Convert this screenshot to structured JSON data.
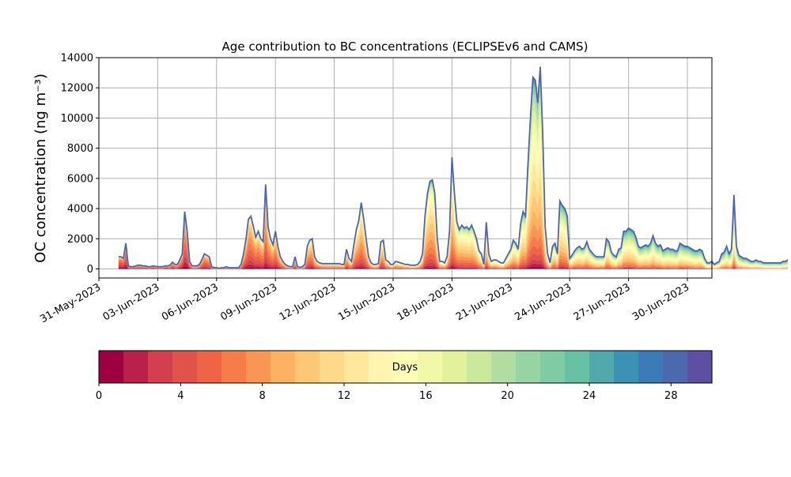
{
  "chart_data": {
    "type": "area",
    "title": "Age contribution to BC concentrations (ECLIPSEv6 and CAMS)",
    "ylabel": "OC concentration (ng m⁻³)",
    "xlabel": "",
    "ylim": [
      -600,
      14000
    ],
    "xlim": [
      "2023-05-31T00:00",
      "2023-07-01T06:00"
    ],
    "grid": true,
    "x_ticks": [
      "31-May-2023",
      "03-Jun-2023",
      "06-Jun-2023",
      "09-Jun-2023",
      "12-Jun-2023",
      "15-Jun-2023",
      "18-Jun-2023",
      "21-Jun-2023",
      "24-Jun-2023",
      "27-Jun-2023",
      "30-Jun-2023"
    ],
    "y_ticks": [
      "0",
      "2000",
      "4000",
      "6000",
      "8000",
      "10000",
      "12000",
      "14000"
    ],
    "total_series_start": "2023-06-01T00:00",
    "total_series_step_hours": 3,
    "total": [
      800,
      800,
      700,
      1700,
      200,
      150,
      150,
      200,
      250,
      250,
      200,
      200,
      150,
      150,
      200,
      180,
      150,
      150,
      150,
      200,
      200,
      250,
      450,
      300,
      300,
      600,
      1000,
      3800,
      2500,
      500,
      200,
      200,
      200,
      300,
      600,
      1000,
      900,
      800,
      150,
      80,
      80,
      50,
      80,
      80,
      150,
      80,
      80,
      80,
      80,
      80,
      300,
      1000,
      2000,
      3300,
      3500,
      2800,
      2100,
      2500,
      2000,
      1800,
      5600,
      2800,
      2000,
      1600,
      2500,
      1500,
      800,
      500,
      300,
      200,
      150,
      150,
      800,
      150,
      100,
      150,
      300,
      1500,
      1900,
      2000,
      800,
      500,
      400,
      350,
      350,
      350,
      350,
      350,
      350,
      350,
      350,
      300,
      300,
      1300,
      700,
      500,
      1600,
      2600,
      3200,
      4400,
      3300,
      2000,
      800,
      400,
      300,
      300,
      350,
      1800,
      1900,
      600,
      500,
      300,
      300,
      500,
      450,
      400,
      350,
      300,
      300,
      250,
      250,
      250,
      300,
      500,
      1000,
      3500,
      5000,
      5800,
      5900,
      5000,
      2000,
      500,
      500,
      400,
      800,
      2500,
      7400,
      5000,
      3100,
      2600,
      2900,
      2700,
      2800,
      2600,
      2900,
      2500,
      2000,
      1200,
      1000,
      300,
      3100,
      1000,
      500,
      600,
      600,
      500,
      400,
      400,
      700,
      1000,
      1300,
      1900,
      1700,
      1300,
      3000,
      3800,
      3500,
      7000,
      10000,
      12700,
      12500,
      11000,
      13400,
      9000,
      2800,
      1000,
      400,
      1500,
      1700,
      1000,
      4500,
      4200,
      4000,
      3500,
      700,
      900,
      1200,
      1400,
      1500,
      1300,
      1400,
      1800,
      1300,
      1100,
      900,
      800,
      800,
      800,
      800,
      2000,
      1800,
      1100,
      900,
      800,
      1300,
      1400,
      2500,
      2500,
      2700,
      2600,
      2500,
      2100,
      1500,
      1400,
      1500,
      1600,
      1500,
      1700,
      2200,
      1700,
      1500,
      1600,
      1200,
      1300,
      1400,
      1300,
      1300,
      1200,
      1200,
      1700,
      1600,
      1500,
      1500,
      1400,
      1300,
      1200,
      1200,
      1300,
      1200,
      700,
      400,
      400,
      500,
      300,
      400,
      500,
      1000,
      1100,
      1500,
      1000,
      1300,
      4900,
      1500,
      900,
      800,
      700,
      700,
      600,
      500,
      500,
      600,
      500,
      500,
      400,
      400,
      400,
      400,
      400,
      400,
      400,
      400,
      500,
      500,
      600
    ]
  },
  "colorbar": {
    "label": "Days",
    "ticks": [
      "0",
      "4",
      "8",
      "12",
      "16",
      "20",
      "24",
      "28"
    ],
    "min": 0,
    "max": 30,
    "colors": [
      "#9e0142",
      "#ba2049",
      "#d53e4f",
      "#e1524a",
      "#ee6445",
      "#f67d4a",
      "#f99655",
      "#fdb163",
      "#fdc776",
      "#fdd98a",
      "#fee89c",
      "#fff5b0",
      "#fdfeb6",
      "#f1f9a9",
      "#e2f29b",
      "#cbe99d",
      "#b0dea2",
      "#97d4a4",
      "#7fcba4",
      "#68c0a5",
      "#51a9ab",
      "#3b92b2",
      "#3b7bb7",
      "#4c69ad",
      "#5e4fa2"
    ]
  },
  "colors": {
    "total_line": "#4f65a8",
    "grid": "#b0b0b0"
  }
}
